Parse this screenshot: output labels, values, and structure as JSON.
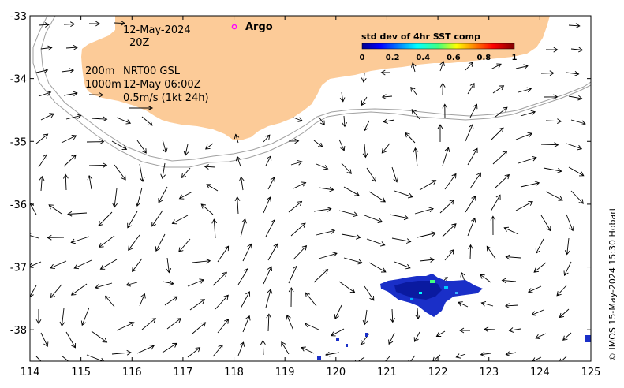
{
  "map": {
    "lon_range": [
      114,
      125
    ],
    "lat_range": [
      -38.5,
      -33
    ],
    "x_ticks": [
      "114",
      "115",
      "116",
      "117",
      "118",
      "119",
      "120",
      "121",
      "122",
      "123",
      "124",
      "125"
    ],
    "y_ticks": [
      "-33",
      "-34",
      "-35",
      "-36",
      "-37",
      "-38"
    ],
    "land_color": "#fccb98",
    "shelf_color": "#a0a0a0"
  },
  "notes": {
    "date": "12-May-2024",
    "time": "20Z",
    "line_200m": "200m",
    "line_nrt": "NRT00 GSL",
    "line_1000m": "1000m",
    "line_obs": "12-May 06:00Z",
    "scale": "0.5m/s (1kt 24h)"
  },
  "argo": {
    "label": "Argo",
    "color": "#ff00ff"
  },
  "legend": {
    "title": "std dev of 4hr SST comp",
    "ticks": [
      "0",
      "0.2",
      "0.4",
      "0.6",
      "0.8",
      "1"
    ],
    "range": [
      0,
      1
    ]
  },
  "copyright": "© IMOS 15-May-2024 15:30 Hobart"
}
